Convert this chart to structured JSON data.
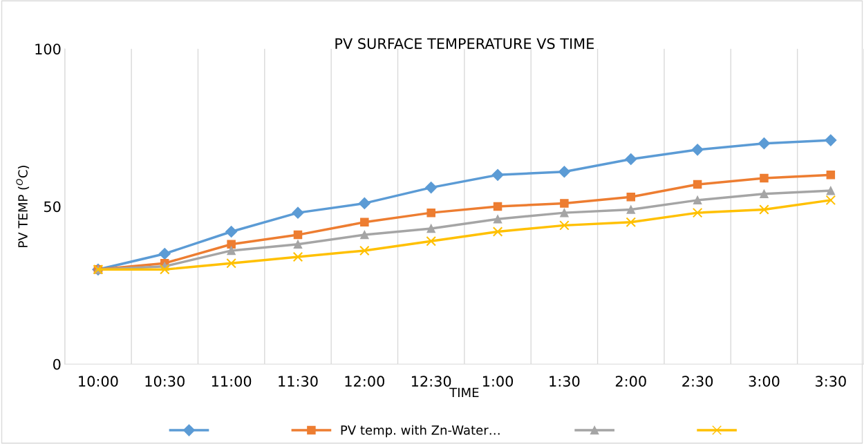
{
  "chart_data": {
    "type": "line",
    "title": "PV SURFACE TEMPERATURE VS TIME",
    "xlabel": "TIME",
    "ylabel": "PV TEMP ($^{O}$C)",
    "categories": [
      "10:00",
      "10:30",
      "11:00",
      "11:30",
      "12:00",
      "12:30",
      "1:00",
      "1:30",
      "2:00",
      "2:30",
      "3:00",
      "3:30"
    ],
    "series": [
      {
        "color": "#5b9bd5",
        "marker": "diamond",
        "values": [
          30,
          35,
          42,
          48,
          51,
          56,
          60,
          61,
          65,
          68,
          70,
          71
        ]
      },
      {
        "name": "PV temp. with Zn-Water…",
        "color": "#ed7d31",
        "marker": "square",
        "values": [
          30,
          32,
          38,
          41,
          45,
          48,
          50,
          51,
          53,
          57,
          59,
          60
        ]
      },
      {
        "color": "#a5a5a5",
        "marker": "triangle",
        "values": [
          30,
          31,
          36,
          38,
          41,
          43,
          46,
          48,
          49,
          52,
          54,
          55
        ]
      },
      {
        "color": "#ffc000",
        "marker": "cross",
        "values": [
          30,
          30,
          32,
          34,
          36,
          39,
          42,
          44,
          45,
          48,
          49,
          52
        ]
      }
    ],
    "ylim": [
      0,
      100
    ],
    "yticks": [
      0,
      50,
      100
    ],
    "grid": "x",
    "legend": "bottom",
    "line_style": "solid"
  }
}
